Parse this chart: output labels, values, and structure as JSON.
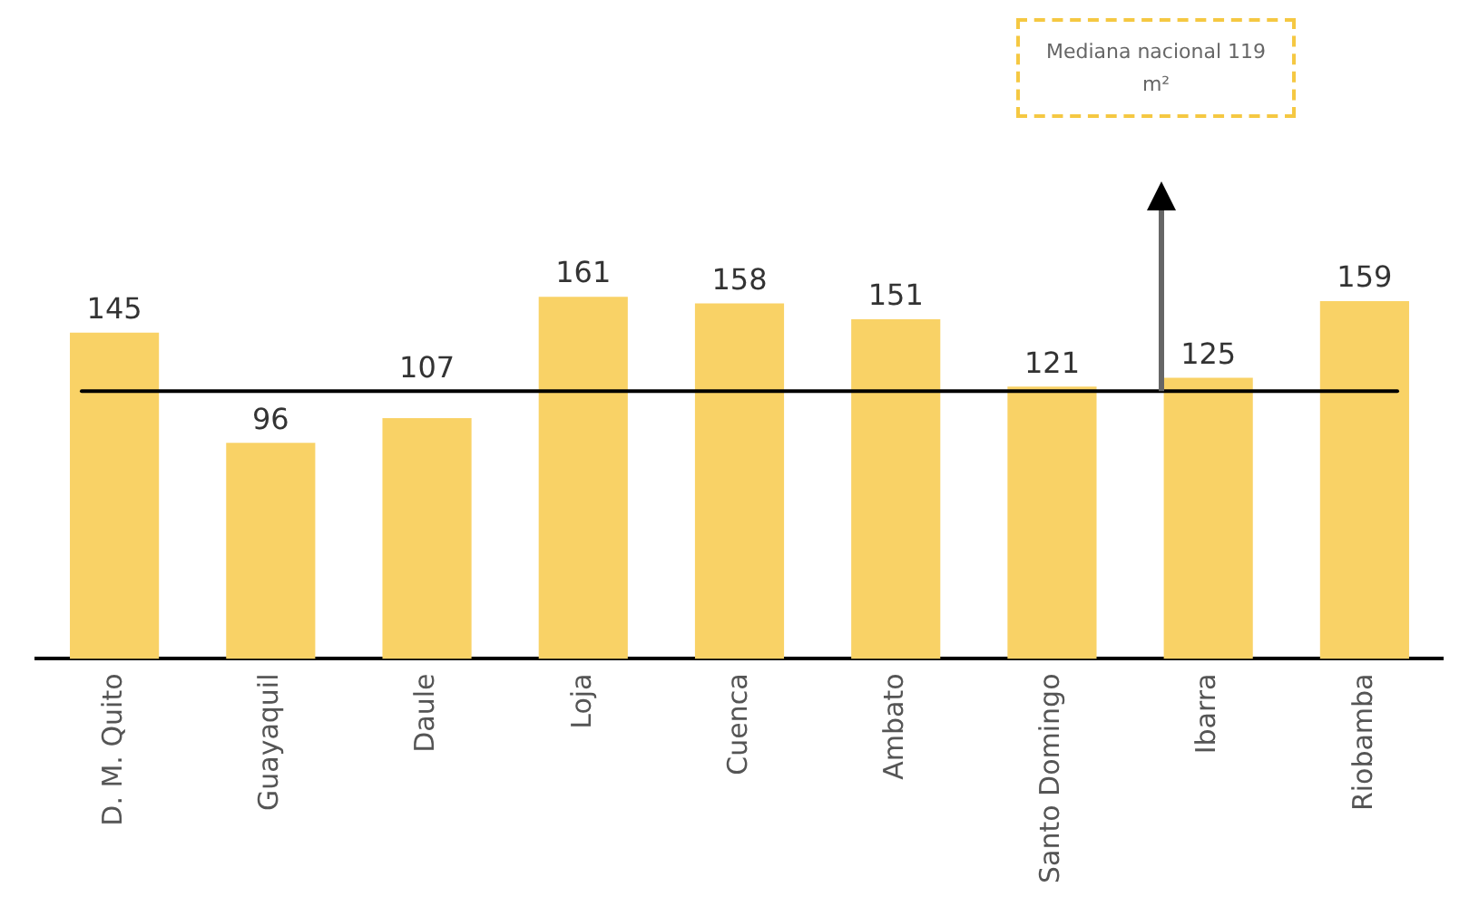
{
  "chart_data": {
    "type": "bar",
    "categories": [
      "D. M. Quito",
      "Guayaquil",
      "Daule",
      "Loja",
      "Cuenca",
      "Ambato",
      "Santo Domingo",
      "Ibarra",
      "Riobamba"
    ],
    "values": [
      145,
      96,
      107,
      161,
      158,
      151,
      121,
      125,
      159
    ],
    "color": "#f9d266",
    "data_labels": true,
    "grid": false,
    "legend": false,
    "tick_labels": "x",
    "annotations": [
      "Mediana nacional 119 m²"
    ],
    "ref_lines": [
      {
        "axis": "y",
        "value": 119,
        "color": "#000000"
      }
    ]
  }
}
